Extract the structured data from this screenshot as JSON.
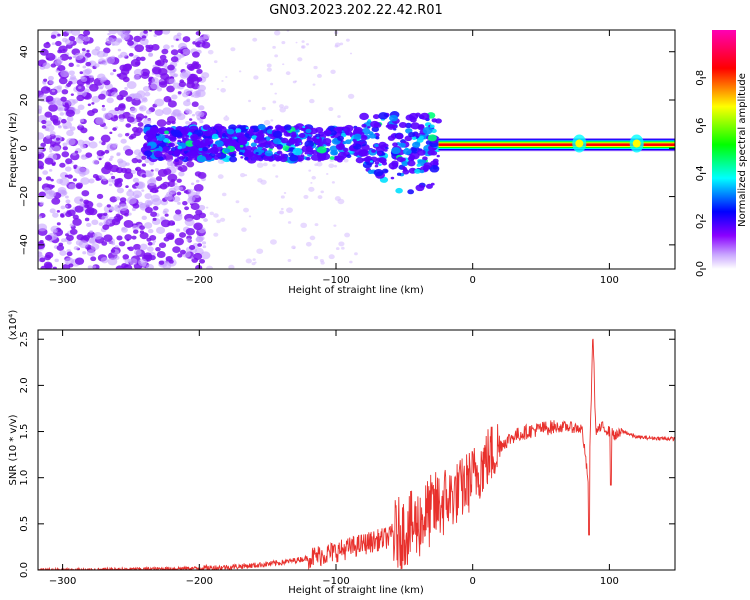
{
  "figure": {
    "title": "GN03.2023.202.22.42.R01"
  },
  "chart_data": [
    {
      "type": "heatmap",
      "title": "",
      "xlabel": "Height of straight line (km)",
      "ylabel": "Frequency (Hz)",
      "xlim": [
        -318,
        148
      ],
      "ylim": [
        -50,
        49
      ],
      "xticks": [
        -300,
        -200,
        -100,
        0,
        100
      ],
      "yticks": [
        -40,
        -20,
        0,
        20,
        40
      ],
      "colorbar": {
        "label": "Normalized spectral amplitude",
        "range": [
          0.0,
          1.0
        ],
        "ticks": [
          "0.0",
          "0.2",
          "0.4",
          "0.6",
          "0.8"
        ],
        "colors": [
          "#ffffff",
          "#8a00ff",
          "#0000ff",
          "#00ffff",
          "#00ff00",
          "#ffff00",
          "#ff0000",
          "#ff00b4"
        ]
      },
      "features": [
        {
          "x_range": [
            -318,
            -195
          ],
          "freq_range": [
            -50,
            49
          ],
          "amplitude": 0.15,
          "description": "scattered noise"
        },
        {
          "x_range": [
            -240,
            -25
          ],
          "freq_center": 2,
          "amplitude": 0.3,
          "description": "broad signal band"
        },
        {
          "x_range": [
            -25,
            148
          ],
          "freq_center": 1.5,
          "amplitude": 0.9,
          "description": "narrow strong line"
        }
      ]
    },
    {
      "type": "line",
      "title": "",
      "xlabel": "Height of straight line (km)",
      "ylabel": "SNR (10 * v/v)",
      "y_multiplier": "(x10⁴)",
      "xlim": [
        -318,
        148
      ],
      "ylim": [
        0,
        2.6
      ],
      "xticks": [
        -300,
        -200,
        -100,
        0,
        100
      ],
      "yticks": [
        "0.0",
        "0.5",
        "1.0",
        "1.5",
        "2.0",
        "2.5"
      ],
      "series": [
        {
          "color": "#e8302c",
          "x": [
            -318,
            -280,
            -240,
            -200,
            -180,
            -160,
            -140,
            -120,
            -100,
            -80,
            -60,
            -50,
            -40,
            -30,
            -20,
            -10,
            0,
            10,
            20,
            30,
            40,
            50,
            60,
            70,
            80,
            85,
            88,
            90,
            95,
            100,
            105,
            110,
            120,
            130,
            148
          ],
          "y": [
            0.0,
            0.0,
            0.01,
            0.02,
            0.03,
            0.05,
            0.08,
            0.13,
            0.2,
            0.28,
            0.36,
            0.42,
            0.5,
            0.65,
            0.75,
            0.85,
            1.0,
            1.2,
            1.35,
            1.45,
            1.5,
            1.53,
            1.55,
            1.55,
            1.53,
            0.9,
            2.6,
            1.5,
            1.55,
            1.5,
            1.45,
            1.5,
            1.44,
            1.43,
            1.42
          ]
        }
      ]
    }
  ]
}
